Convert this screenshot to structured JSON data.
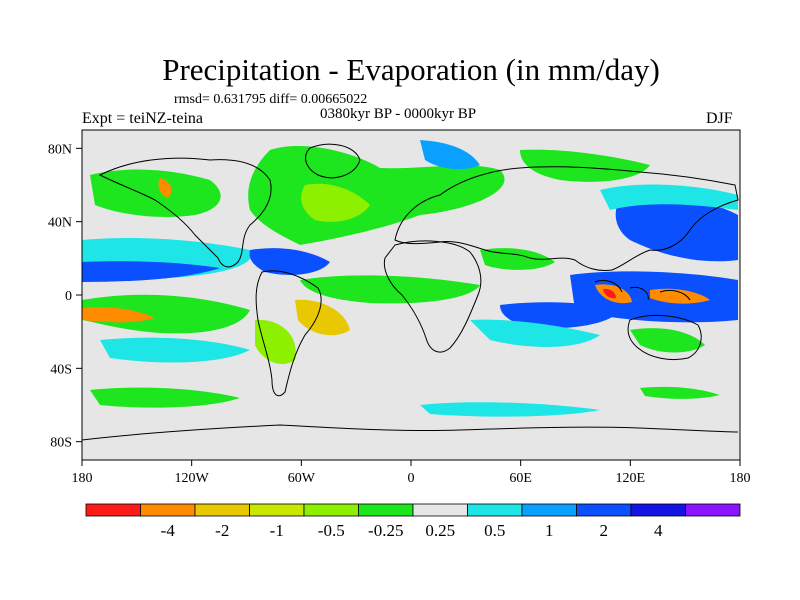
{
  "figure": {
    "title": "Precipitation - Evaporation (in mm/day)",
    "stats": "rmsd= 0.631795 diff= 0.00665022",
    "experiment": "Expt = teiNZ-teina",
    "period": "0380kyr BP - 0000kyr BP",
    "season": "DJF"
  },
  "axes": {
    "lat_ticks": [
      {
        "value": 80,
        "label": "80N"
      },
      {
        "value": 40,
        "label": "40N"
      },
      {
        "value": 0,
        "label": "0"
      },
      {
        "value": -40,
        "label": "40S"
      },
      {
        "value": -80,
        "label": "80S"
      }
    ],
    "lon_ticks": [
      {
        "value": -180,
        "label": "180"
      },
      {
        "value": -120,
        "label": "120W"
      },
      {
        "value": -60,
        "label": "60W"
      },
      {
        "value": 0,
        "label": "0"
      },
      {
        "value": 60,
        "label": "60E"
      },
      {
        "value": 120,
        "label": "120E"
      },
      {
        "value": 180,
        "label": "180"
      }
    ],
    "lon_range": [
      -180,
      180
    ],
    "lat_range": [
      -90,
      90
    ]
  },
  "colorbar": {
    "colors": [
      "#ff1a1a",
      "#ff8c00",
      "#e8c800",
      "#c8e600",
      "#8cf000",
      "#1ee61e",
      "#e6e6e6",
      "#1ee6e6",
      "#0aa0ff",
      "#0a50ff",
      "#1414e6",
      "#8c14ff"
    ],
    "labels": [
      "-4",
      "-2",
      "-1",
      "-0.5",
      "-0.25",
      "0.25",
      "0.5",
      "1",
      "2",
      "4"
    ]
  },
  "map_fields": [
    {
      "name": "atlantic-north-pattern",
      "shade": "green"
    },
    {
      "name": "pacific-itcz-band",
      "shade": "blue"
    },
    {
      "name": "maritime-continent",
      "shade": "orange"
    },
    {
      "name": "indian-ocean-band",
      "shade": "blue"
    }
  ],
  "coastline_labels": []
}
